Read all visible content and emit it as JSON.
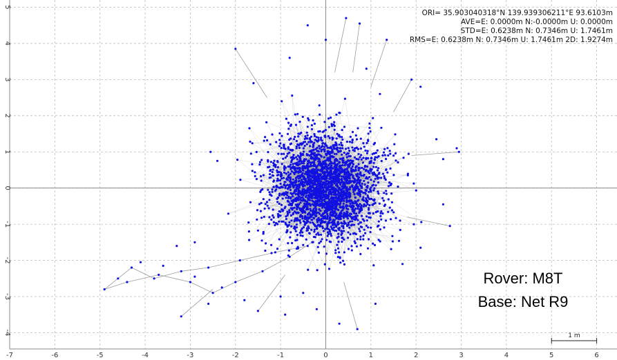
{
  "chart_data": {
    "type": "scatter",
    "title": "",
    "xlabel": "",
    "ylabel": "",
    "xlim": [
      -7,
      6.45
    ],
    "ylim": [
      -4.45,
      5.2
    ],
    "x_ticks": [
      -7,
      -6,
      -5,
      -4,
      -3,
      -2,
      -1,
      0,
      1,
      2,
      3,
      4,
      5,
      6
    ],
    "y_ticks": [
      -4,
      -3,
      -2,
      -1,
      0,
      1,
      2,
      3,
      4,
      5
    ],
    "grid": true,
    "axis_color": "#888888",
    "grid_color": "#bbbbbb",
    "marker_color": "#1010e0",
    "line_color": "#9a9a9a",
    "stats": [
      "ORI= 35.903040318°N  139.939306211°E 93.6103m",
      "AVE=E: 0.0000m N:-0.0000m U: 0.0000m",
      "STD=E: 0.6238m N: 0.7346m U: 1.7461m",
      "RMS=E: 0.6238m N: 0.7346m U: 1.7461m 2D: 1.9274m"
    ],
    "overlay": [
      "Rover: M8T",
      "Base: Net R9"
    ],
    "scale_bar": {
      "label": "1 m",
      "length": 1
    },
    "distribution": {
      "mean_e": 0.0,
      "mean_n": 0.0,
      "std_e": 0.6238,
      "std_n": 0.7346
    },
    "outlier_path": [
      [
        -0.4,
        -1.6
      ],
      [
        -1.2,
        -1.8
      ],
      [
        -1.9,
        -2.0
      ],
      [
        -2.6,
        -2.2
      ],
      [
        -3.2,
        -2.3
      ],
      [
        -3.8,
        -2.5
      ],
      [
        -4.3,
        -2.2
      ],
      [
        -4.6,
        -2.5
      ],
      [
        -4.9,
        -2.8
      ],
      [
        -4.4,
        -2.6
      ],
      [
        -3.7,
        -2.4
      ],
      [
        -3.0,
        -2.6
      ],
      [
        -2.5,
        -2.9
      ],
      [
        -2.0,
        -2.6
      ],
      [
        -1.4,
        -2.3
      ],
      [
        -0.8,
        -1.9
      ],
      [
        -0.3,
        -1.5
      ]
    ],
    "outlier_points": [
      [
        -4.1,
        -2.05
      ],
      [
        -3.6,
        -2.15
      ],
      [
        -2.9,
        -2.45
      ],
      [
        -2.3,
        -2.75
      ],
      [
        -1.8,
        -3.1
      ],
      [
        -1.5,
        -3.4
      ],
      [
        -0.9,
        -3.5
      ],
      [
        -0.2,
        -3.35
      ],
      [
        0.3,
        -3.75
      ],
      [
        0.7,
        -3.9
      ],
      [
        1.1,
        -3.2
      ],
      [
        -0.5,
        -2.9
      ],
      [
        -1.0,
        -3.0
      ],
      [
        -3.2,
        -3.55
      ],
      [
        -2.6,
        -3.2
      ],
      [
        -2.0,
        3.85
      ],
      [
        -1.6,
        2.9
      ],
      [
        0.45,
        4.7
      ],
      [
        0.75,
        4.55
      ],
      [
        -0.4,
        4.5
      ],
      [
        0.0,
        4.1
      ],
      [
        1.35,
        4.1
      ],
      [
        1.9,
        3.0
      ],
      [
        2.1,
        2.8
      ],
      [
        2.45,
        1.35
      ],
      [
        2.6,
        0.8
      ],
      [
        2.9,
        1.1
      ],
      [
        2.95,
        1.0
      ],
      [
        2.6,
        -0.45
      ],
      [
        2.75,
        -1.05
      ],
      [
        2.1,
        -1.65
      ],
      [
        1.7,
        -2.1
      ],
      [
        -2.55,
        1.0
      ],
      [
        -2.4,
        0.75
      ],
      [
        -2.9,
        -1.5
      ],
      [
        -3.3,
        -1.6
      ],
      [
        -1.7,
        -1.2
      ],
      [
        1.2,
        2.6
      ],
      [
        -0.8,
        3.6
      ],
      [
        0.9,
        3.3
      ]
    ],
    "outlier_lines": [
      [
        [
          -2.0,
          3.85
        ],
        [
          -1.3,
          2.5
        ]
      ],
      [
        [
          0.45,
          4.7
        ],
        [
          0.2,
          3.2
        ]
      ],
      [
        [
          0.75,
          4.55
        ],
        [
          0.6,
          3.2
        ]
      ],
      [
        [
          1.35,
          4.1
        ],
        [
          1.0,
          2.8
        ]
      ],
      [
        [
          1.9,
          3.0
        ],
        [
          1.5,
          2.1
        ]
      ],
      [
        [
          2.95,
          1.0
        ],
        [
          1.9,
          0.9
        ]
      ],
      [
        [
          2.75,
          -1.05
        ],
        [
          1.8,
          -0.8
        ]
      ],
      [
        [
          0.7,
          -3.9
        ],
        [
          0.4,
          -2.6
        ]
      ],
      [
        [
          -1.5,
          -3.4
        ],
        [
          -0.9,
          -2.4
        ]
      ],
      [
        [
          -3.2,
          -3.55
        ],
        [
          -2.5,
          -2.8
        ]
      ]
    ]
  }
}
